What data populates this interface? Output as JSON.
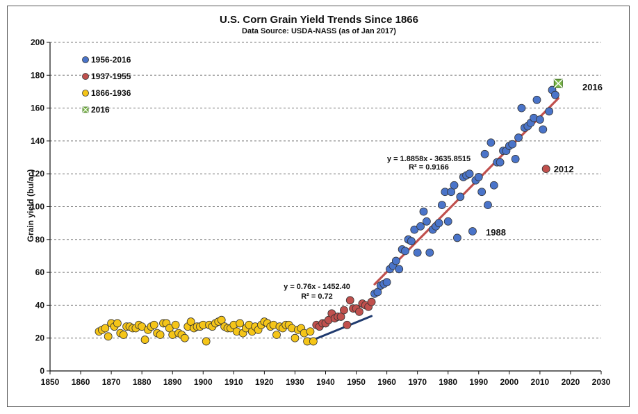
{
  "chart_data": {
    "type": "scatter",
    "title": "U.S. Corn Grain Yield Trends Since 1866",
    "subtitle": "Data Source: USDA-NASS (as of Jan 2017)",
    "xlabel": "",
    "ylabel": "Grain yield (bu/ac)",
    "xlim": [
      1850,
      2030
    ],
    "ylim": [
      0,
      200
    ],
    "x_ticks": [
      "1850",
      "1860",
      "1870",
      "1880",
      "1890",
      "1900",
      "1910",
      "1920",
      "1930",
      "1940",
      "1950",
      "1960",
      "1970",
      "1980",
      "1990",
      "2000",
      "2010",
      "2020",
      "2030"
    ],
    "y_ticks": [
      "0",
      "20",
      "40",
      "60",
      "80",
      "100",
      "120",
      "140",
      "160",
      "180",
      "200"
    ],
    "grid": "horizontal dashed",
    "legend_position": "top-left",
    "colors": {
      "s1956": "#4a74c9",
      "s1937": "#c0504d",
      "s1866": "#f5c518",
      "s2016": "#7ab648",
      "trend_early": "#1f3a6e",
      "trend_late": "#c0504d"
    },
    "series": [
      {
        "name": "1956-2016",
        "color": "#4a74c9",
        "x": [
          1956,
          1957,
          1958,
          1959,
          1960,
          1961,
          1962,
          1963,
          1964,
          1965,
          1966,
          1967,
          1968,
          1969,
          1970,
          1971,
          1972,
          1973,
          1974,
          1975,
          1976,
          1977,
          1978,
          1979,
          1980,
          1981,
          1982,
          1983,
          1984,
          1985,
          1986,
          1987,
          1988,
          1989,
          1990,
          1991,
          1992,
          1993,
          1994,
          1995,
          1996,
          1997,
          1998,
          1999,
          2000,
          2001,
          2002,
          2003,
          2004,
          2005,
          2006,
          2007,
          2008,
          2009,
          2010,
          2011,
          2013,
          2014,
          2015
        ],
        "y": [
          47,
          48,
          52,
          53,
          54,
          62,
          64,
          67,
          62,
          74,
          73,
          80,
          79,
          86,
          72,
          88,
          97,
          91,
          72,
          86,
          88,
          90,
          101,
          109,
          91,
          109,
          113,
          81,
          106,
          118,
          119,
          120,
          85,
          116,
          118,
          109,
          132,
          101,
          139,
          113,
          127,
          127,
          134,
          134,
          137,
          138,
          129,
          142,
          160,
          148,
          149,
          151,
          154,
          165,
          153,
          147,
          158,
          171,
          168
        ]
      },
      {
        "name": "1937-1955",
        "color": "#c0504d",
        "x": [
          1937,
          1938,
          1939,
          1940,
          1941,
          1942,
          1943,
          1944,
          1945,
          1946,
          1947,
          1948,
          1949,
          1950,
          1951,
          1952,
          1953,
          1954,
          1955
        ],
        "y": [
          28,
          27,
          29,
          29,
          31,
          35,
          32,
          33,
          33,
          37,
          28,
          43,
          38,
          38,
          36,
          41,
          40,
          39,
          42
        ]
      },
      {
        "name": "1866-1936",
        "color": "#f5c518",
        "x": [
          1866,
          1867,
          1868,
          1869,
          1870,
          1871,
          1872,
          1873,
          1874,
          1875,
          1876,
          1877,
          1878,
          1879,
          1880,
          1881,
          1882,
          1883,
          1884,
          1885,
          1886,
          1887,
          1888,
          1889,
          1890,
          1891,
          1892,
          1893,
          1894,
          1895,
          1896,
          1897,
          1898,
          1899,
          1900,
          1901,
          1902,
          1903,
          1904,
          1905,
          1906,
          1907,
          1908,
          1909,
          1910,
          1911,
          1912,
          1913,
          1914,
          1915,
          1916,
          1917,
          1918,
          1919,
          1920,
          1921,
          1922,
          1923,
          1924,
          1925,
          1926,
          1927,
          1928,
          1929,
          1930,
          1931,
          1932,
          1933,
          1934,
          1935,
          1936
        ],
        "y": [
          24,
          25,
          26,
          21,
          29,
          27,
          29,
          23,
          22,
          27,
          27,
          26,
          26,
          28,
          27,
          19,
          25,
          27,
          28,
          23,
          22,
          29,
          29,
          26,
          22,
          28,
          23,
          22,
          20,
          27,
          30,
          26,
          27,
          27,
          28,
          18,
          28,
          27,
          29,
          30,
          31,
          27,
          26,
          26,
          28,
          24,
          29,
          23,
          26,
          28,
          24,
          27,
          25,
          28,
          30,
          29,
          27,
          28,
          22,
          27,
          26,
          28,
          28,
          26,
          20,
          25,
          26,
          23,
          18,
          24,
          18
        ]
      },
      {
        "name": "2016",
        "color": "#7ab648",
        "x": [
          2016
        ],
        "y": [
          175
        ]
      }
    ],
    "trendlines": [
      {
        "equation": "y = 0.76x - 1452.40",
        "r2": "R² = 0.72",
        "x_range": [
          1937,
          1955
        ],
        "slope": 0.76,
        "intercept": -1452.4,
        "color": "#1f3a6e"
      },
      {
        "equation": "y = 1.8858x - 3635.8515",
        "r2": "R² = 0.9166",
        "x_range": [
          1956,
          2016
        ],
        "slope": 1.8858,
        "intercept": -3635.8515,
        "color": "#c0504d"
      }
    ],
    "highlights": [
      {
        "label": "2012",
        "x": 2012,
        "y": 123,
        "color": "#c0504d"
      }
    ],
    "annotations": [
      {
        "text": "2016",
        "ref": "2016"
      },
      {
        "text": "1988",
        "ref": "1988"
      }
    ]
  }
}
